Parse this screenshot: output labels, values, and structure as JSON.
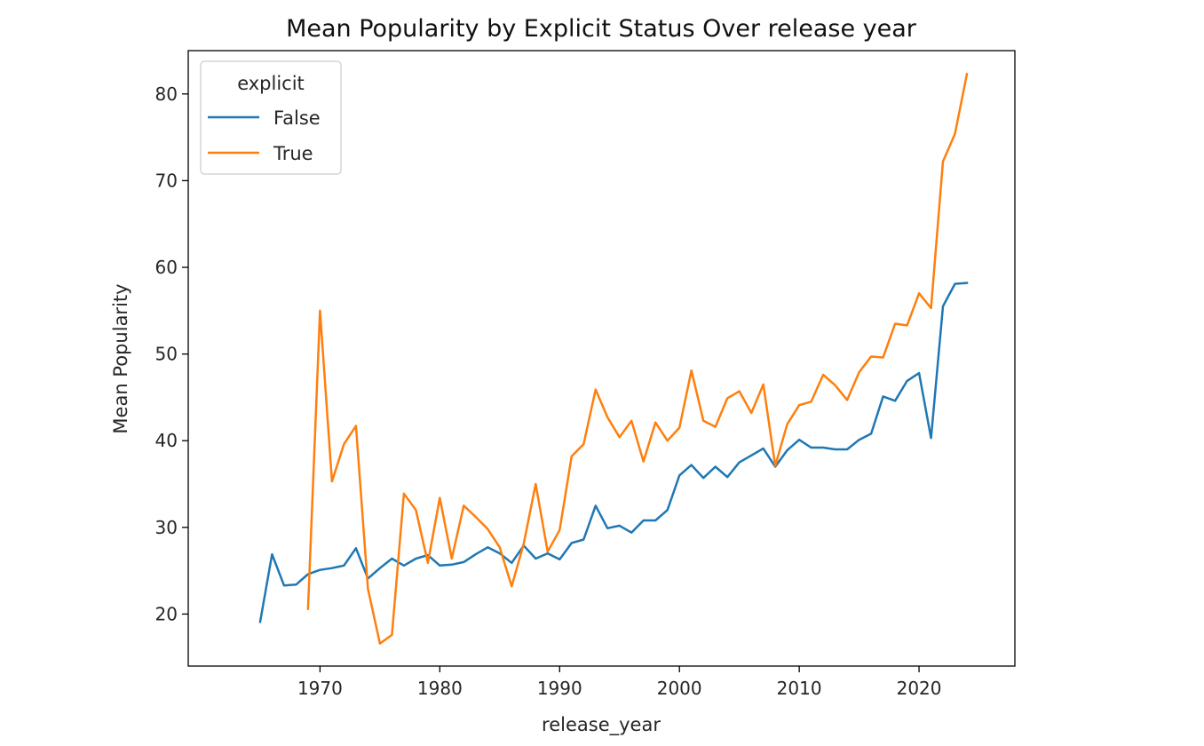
{
  "chart_data": {
    "type": "line",
    "title": "Mean Popularity by Explicit Status Over release year",
    "xlabel": "release_year",
    "ylabel": "Mean Popularity",
    "xlim": [
      1959,
      2028
    ],
    "ylim": [
      14,
      85
    ],
    "xticks": [
      1970,
      1980,
      1990,
      2000,
      2010,
      2020
    ],
    "yticks": [
      20,
      30,
      40,
      50,
      60,
      70,
      80
    ],
    "grid": false,
    "legend": {
      "title": "explicit",
      "position": "top-left"
    },
    "series": [
      {
        "name": "False",
        "color": "#1f77b4",
        "x": [
          1965,
          1966,
          1967,
          1968,
          1969,
          1970,
          1971,
          1972,
          1973,
          1974,
          1975,
          1976,
          1977,
          1978,
          1979,
          1980,
          1981,
          1982,
          1983,
          1984,
          1985,
          1986,
          1987,
          1988,
          1989,
          1990,
          1991,
          1992,
          1993,
          1994,
          1995,
          1996,
          1997,
          1998,
          1999,
          2000,
          2001,
          2002,
          2003,
          2004,
          2005,
          2006,
          2007,
          2008,
          2009,
          2010,
          2011,
          2012,
          2013,
          2014,
          2015,
          2016,
          2017,
          2018,
          2019,
          2020,
          2021,
          2022,
          2023,
          2024
        ],
        "values": [
          19.1,
          26.9,
          23.3,
          23.4,
          24.6,
          25.1,
          25.3,
          25.6,
          27.6,
          24.1,
          25.3,
          26.4,
          25.6,
          26.4,
          26.8,
          25.6,
          25.7,
          26.0,
          26.9,
          27.7,
          27.0,
          25.9,
          27.9,
          26.4,
          27.0,
          26.3,
          28.2,
          28.6,
          32.5,
          29.9,
          30.2,
          29.4,
          30.8,
          30.8,
          32.0,
          36.0,
          37.2,
          35.7,
          37.0,
          35.8,
          37.5,
          38.3,
          39.1,
          37.0,
          38.9,
          40.1,
          39.2,
          39.2,
          39.0,
          39.0,
          40.1,
          40.8,
          45.1,
          44.6,
          46.9,
          47.8,
          40.3,
          55.5,
          58.1,
          58.2
        ]
      },
      {
        "name": "True",
        "color": "#ff7f0e",
        "x": [
          1969,
          1970,
          1971,
          1972,
          1973,
          1974,
          1975,
          1976,
          1977,
          1978,
          1979,
          1980,
          1981,
          1982,
          1983,
          1984,
          1985,
          1986,
          1987,
          1988,
          1989,
          1990,
          1991,
          1992,
          1993,
          1994,
          1995,
          1996,
          1997,
          1998,
          1999,
          2000,
          2001,
          2002,
          2003,
          2004,
          2005,
          2006,
          2007,
          2008,
          2009,
          2010,
          2011,
          2012,
          2013,
          2014,
          2015,
          2016,
          2017,
          2018,
          2019,
          2020,
          2021,
          2022,
          2023,
          2024
        ],
        "values": [
          20.6,
          55.0,
          35.3,
          39.6,
          41.7,
          22.9,
          16.6,
          17.6,
          33.9,
          32.0,
          25.9,
          33.4,
          26.4,
          32.5,
          31.2,
          29.8,
          27.7,
          23.2,
          28.1,
          35.0,
          27.2,
          29.7,
          38.2,
          39.6,
          45.9,
          42.7,
          40.4,
          42.3,
          37.6,
          42.1,
          40.0,
          41.5,
          48.1,
          42.3,
          41.6,
          44.9,
          45.7,
          43.2,
          46.5,
          37.1,
          41.9,
          44.1,
          44.5,
          47.6,
          46.4,
          44.7,
          47.9,
          49.7,
          49.6,
          53.5,
          53.3,
          57.0,
          55.3,
          72.2,
          75.4,
          82.3
        ]
      }
    ]
  }
}
